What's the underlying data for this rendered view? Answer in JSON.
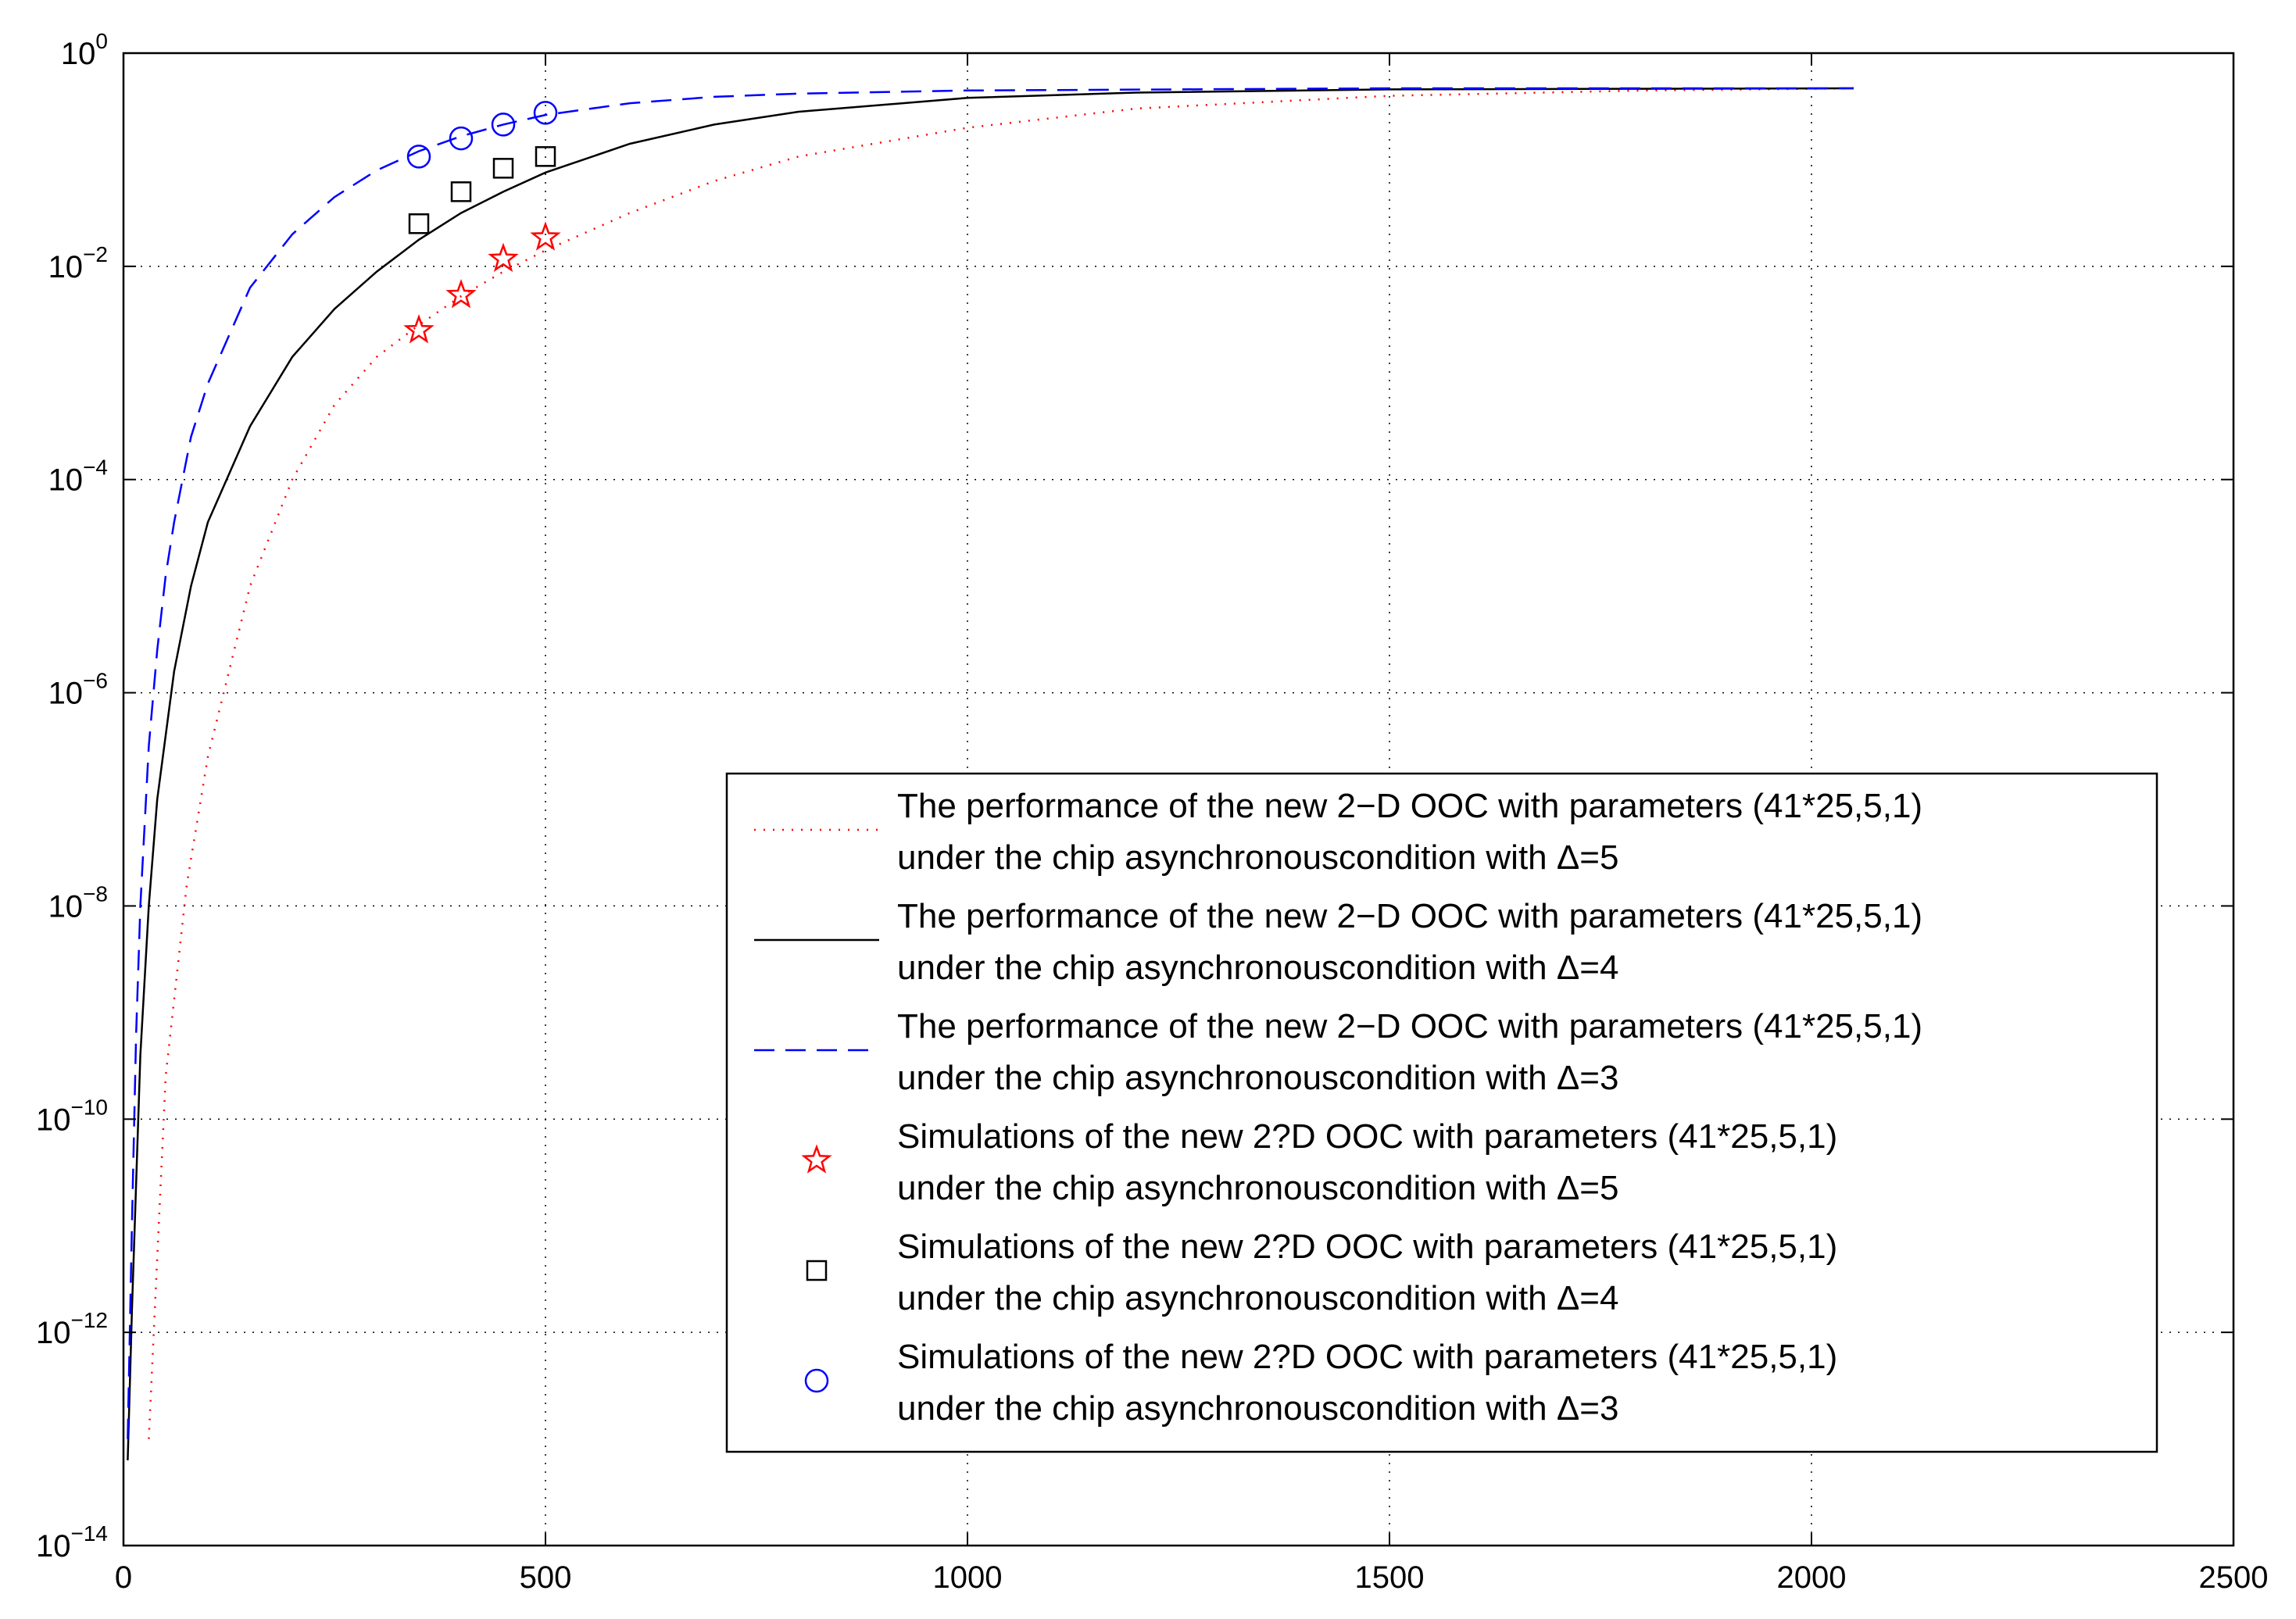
{
  "chart_data": {
    "type": "line",
    "title": "",
    "xlabel": "",
    "ylabel": "",
    "xscale": "linear",
    "yscale": "log",
    "xlim": [
      0,
      2500
    ],
    "ylim_exp": [
      -14,
      0
    ],
    "xticks": [
      "0",
      "500",
      "1000",
      "1500",
      "2000",
      "2500"
    ],
    "yticks": [
      {
        "base": "10",
        "exp": "0",
        "value": 0
      },
      {
        "base": "10",
        "exp": "−2",
        "value": -2
      },
      {
        "base": "10",
        "exp": "−4",
        "value": -4
      },
      {
        "base": "10",
        "exp": "−6",
        "value": -6
      },
      {
        "base": "10",
        "exp": "−8",
        "value": -8
      },
      {
        "base": "10",
        "exp": "−10",
        "value": -10
      },
      {
        "base": "10",
        "exp": "−12",
        "value": -12
      },
      {
        "base": "10",
        "exp": "−14",
        "value": -14
      }
    ],
    "grid": true,
    "legend_position": "bottom-right",
    "series": [
      {
        "name": "theory-delta-5",
        "kind": "line",
        "color": "#ff0000",
        "dash": "dotted",
        "legend": [
          "The performance of the new 2−D OOC with parameters (41*25,5,1)",
          "under the chip asynchronouscondition with Δ=5"
        ],
        "x": [
          30,
          50,
          75,
          100,
          150,
          200,
          250,
          300,
          350,
          400,
          450,
          500,
          600,
          700,
          800,
          1000,
          1200,
          1500,
          1800,
          2050
        ],
        "log10y": [
          -13.0,
          -9.6,
          -7.8,
          -6.6,
          -5.0,
          -4.0,
          -3.3,
          -2.85,
          -2.55,
          -2.28,
          -2.05,
          -1.85,
          -1.5,
          -1.2,
          -0.97,
          -0.7,
          -0.52,
          -0.4,
          -0.35,
          -0.33
        ]
      },
      {
        "name": "theory-delta-4",
        "kind": "line",
        "color": "#000000",
        "dash": "solid",
        "legend": [
          "The performance of the new 2−D OOC with parameters (41*25,5,1)",
          "under the chip asynchronouscondition with Δ=4"
        ],
        "x": [
          5,
          10,
          20,
          30,
          40,
          60,
          80,
          100,
          150,
          200,
          250,
          300,
          350,
          400,
          450,
          500,
          600,
          700,
          800,
          1000,
          1200,
          1500,
          2050
        ],
        "log10y": [
          -13.2,
          -11.8,
          -9.4,
          -8.0,
          -7.0,
          -5.8,
          -5.0,
          -4.4,
          -3.5,
          -2.85,
          -2.4,
          -2.05,
          -1.75,
          -1.5,
          -1.3,
          -1.12,
          -0.85,
          -0.67,
          -0.55,
          -0.42,
          -0.37,
          -0.34,
          -0.33
        ]
      },
      {
        "name": "theory-delta-3",
        "kind": "line",
        "color": "#0000ff",
        "dash": "dashed",
        "legend": [
          "The performance of the new 2−D OOC with parameters (41*25,5,1)",
          "under the chip asynchronouscondition with Δ=3"
        ],
        "x": [
          5,
          10,
          15,
          20,
          30,
          40,
          50,
          60,
          70,
          80,
          100,
          150,
          200,
          250,
          300,
          350,
          400,
          450,
          500,
          600,
          700,
          800,
          1000,
          1500,
          2050
        ],
        "log10y": [
          -13.0,
          -11.0,
          -9.2,
          -8.0,
          -6.5,
          -5.6,
          -4.9,
          -4.4,
          -4.0,
          -3.6,
          -3.1,
          -2.2,
          -1.7,
          -1.35,
          -1.1,
          -0.92,
          -0.78,
          -0.67,
          -0.58,
          -0.47,
          -0.41,
          -0.38,
          -0.35,
          -0.33,
          -0.33
        ]
      },
      {
        "name": "sim-delta-5",
        "kind": "markers",
        "marker": "star",
        "color": "#ff0000",
        "legend": [
          "Simulations of the new 2?D OOC with parameters (41*25,5,1)",
          "under the chip asynchronouscondition with  Δ=5"
        ],
        "x": [
          350,
          400,
          450,
          500
        ],
        "log10y": [
          -2.6,
          -2.27,
          -1.93,
          -1.73
        ]
      },
      {
        "name": "sim-delta-4",
        "kind": "markers",
        "marker": "square",
        "color": "#000000",
        "legend": [
          "Simulations of the new 2?D OOC with parameters (41*25,5,1)",
          "under the chip asynchronouscondition with  Δ=4"
        ],
        "x": [
          350,
          400,
          450,
          500
        ],
        "log10y": [
          -1.6,
          -1.3,
          -1.08,
          -0.97
        ]
      },
      {
        "name": "sim-delta-3",
        "kind": "markers",
        "marker": "circle",
        "color": "#0000ff",
        "legend": [
          "Simulations of the new 2?D OOC with parameters (41*25,5,1)",
          "under the chip asynchronouscondition with  Δ=3"
        ],
        "x": [
          350,
          400,
          450,
          500
        ],
        "log10y": [
          -0.97,
          -0.8,
          -0.67,
          -0.56
        ]
      }
    ]
  }
}
